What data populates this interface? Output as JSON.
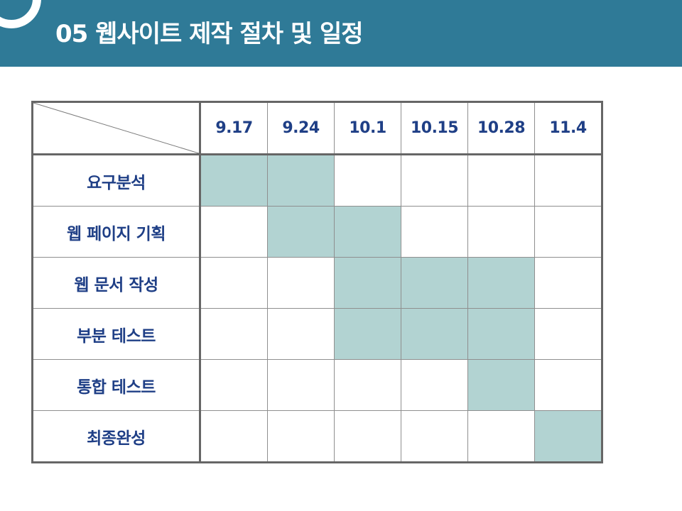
{
  "slide": {
    "title": "05 웹사이트 제작 절차 및 일정"
  },
  "schedule": {
    "dates": [
      "9.17",
      "9.24",
      "10.1",
      "10.15",
      "10.28",
      "11.4"
    ],
    "rows": [
      {
        "label": "요구분석",
        "active": [
          true,
          true,
          false,
          false,
          false,
          false
        ]
      },
      {
        "label": "웹 페이지 기획",
        "active": [
          false,
          true,
          true,
          false,
          false,
          false
        ]
      },
      {
        "label": "웹 문서 작성",
        "active": [
          false,
          false,
          true,
          true,
          true,
          false
        ]
      },
      {
        "label": "부분 테스트",
        "active": [
          false,
          false,
          true,
          true,
          true,
          false
        ]
      },
      {
        "label": "통합 테스트",
        "active": [
          false,
          false,
          false,
          false,
          true,
          false
        ]
      },
      {
        "label": "최종완성",
        "active": [
          false,
          false,
          false,
          false,
          false,
          true
        ]
      }
    ]
  },
  "colors": {
    "header_bg": "#2f7a97",
    "text_navy": "#1f3f86",
    "active_cell": "#b2d3d2"
  }
}
